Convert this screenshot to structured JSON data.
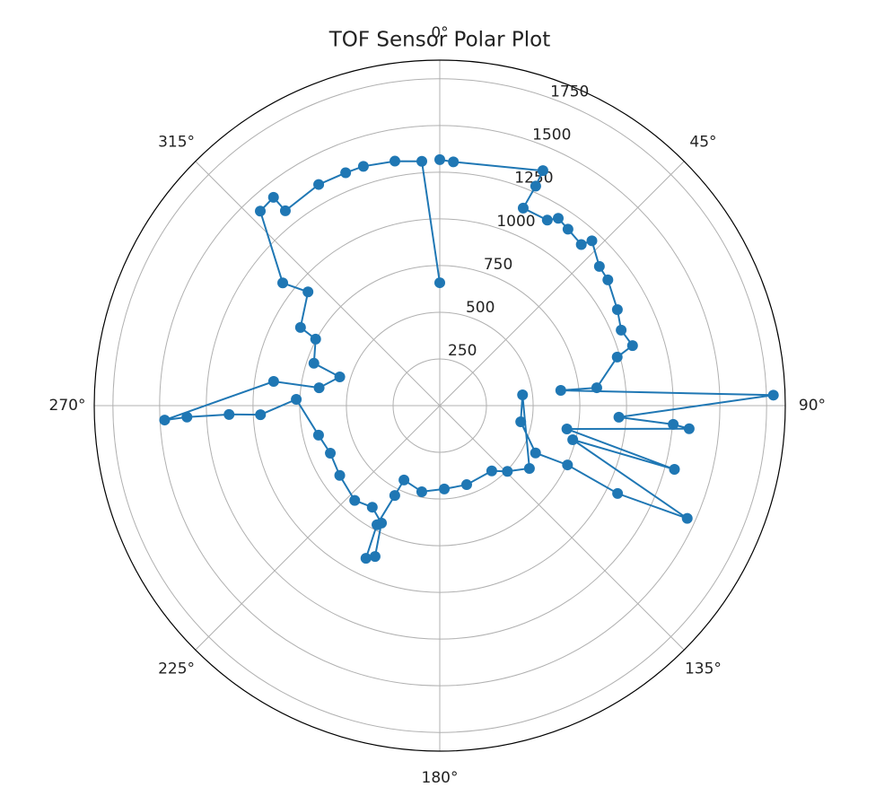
{
  "chart_data": {
    "type": "polar",
    "title": "TOF Sensor Polar Plot",
    "color": "#1f77b4",
    "x": [
      0,
      3.2,
      23.7,
      23.6,
      22.9,
      30.1,
      32.3,
      36,
      41.3,
      42.7,
      48.9,
      53.2,
      61.6,
      67.4,
      72.7,
      74.7,
      83.5,
      82.8,
      88.2,
      93.7,
      94.6,
      95.3,
      100.4,
      105.2,
      104.4,
      114.5,
      116.3,
      114.9,
      116.3,
      101.3,
      82.6,
      125,
      134.2,
      141.5,
      161.2,
      176.9,
      191.8,
      205.7,
      206.6,
      207.8,
      205.8,
      203.2,
      206.4,
      213.6,
      221.9,
      235.1,
      246.5,
      256.3,
      272.5,
      267.1,
      267.6,
      267.4,
      267,
      278.3,
      278.4,
      286,
      288.6,
      298.2,
      299.3,
      310.8,
      308,
      317.3,
      321.4,
      321.6,
      331.3,
      338,
      342.3,
      349.6,
      355.8,
      0
    ],
    "values": [
      1317,
      1307,
      1374,
      1283,
      1148,
      1148,
      1187,
      1168,
      1148,
      1201,
      1134,
      1124,
      1081,
      1052,
      1081,
      985,
      846,
      653,
      1787,
      961,
      1254,
      1341,
      692,
      1302,
      735,
      1456,
      1062,
      754,
      572,
      442,
      447,
      586,
      505,
      447,
      447,
      447,
      471,
      442,
      538,
      721,
      908,
      879,
      702,
      653,
      682,
      653,
      639,
      668,
      769,
      961,
      1129,
      1355,
      1475,
      899,
      653,
      557,
      711,
      754,
      855,
      932,
      1067,
      1417,
      1427,
      1331,
      1350,
      1345,
      1345,
      1331,
      1312,
      658
    ],
    "ylim": [
      0,
      1850
    ],
    "yticks": [
      250,
      500,
      750,
      1000,
      1250,
      1500,
      1750
    ],
    "xticks": [
      {
        "value": 0,
        "label": "0°"
      },
      {
        "value": 45,
        "label": "45°"
      },
      {
        "value": 90,
        "label": "90°"
      },
      {
        "value": 135,
        "label": "135°"
      },
      {
        "value": 180,
        "label": "180°"
      },
      {
        "value": 225,
        "label": "225°"
      },
      {
        "value": 270,
        "label": "270°"
      },
      {
        "value": 315,
        "label": "315°"
      }
    ],
    "grid": true
  }
}
